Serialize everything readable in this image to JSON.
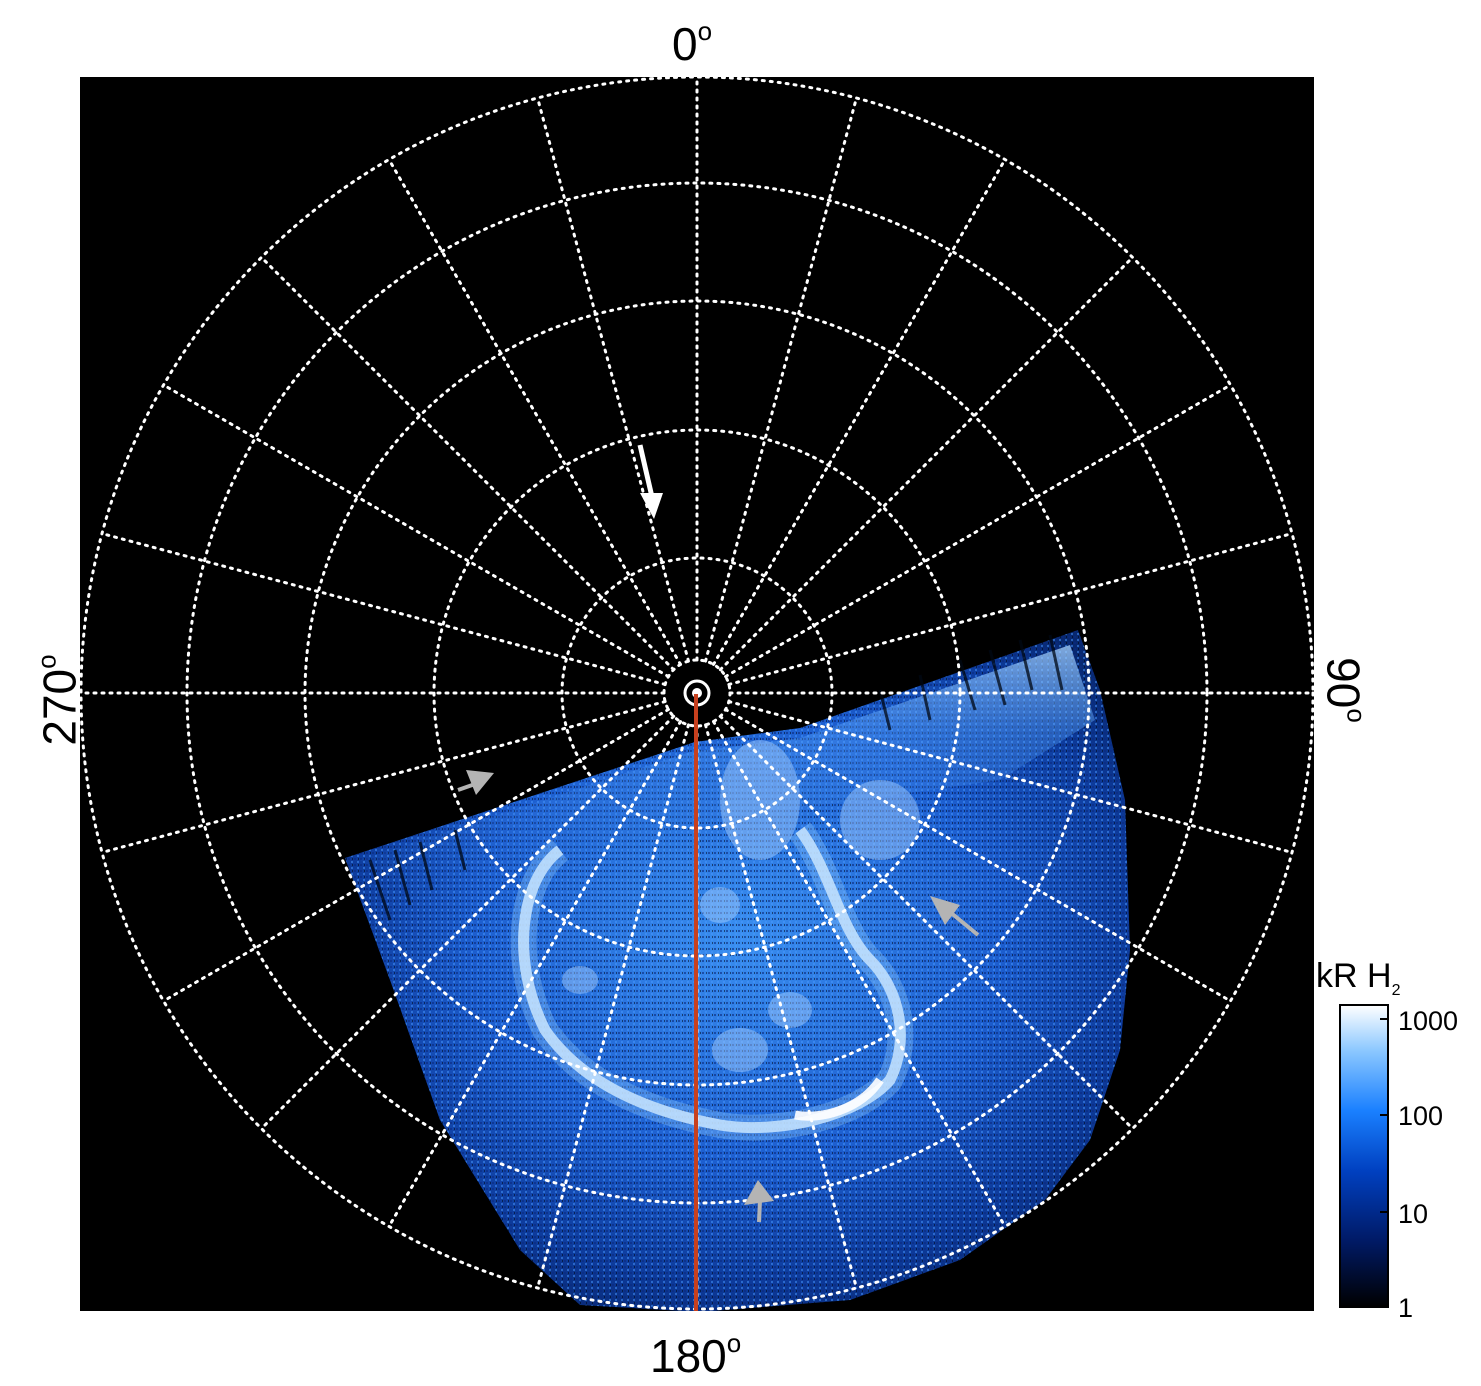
{
  "labels": {
    "top": "0",
    "bottom": "180",
    "left": "270",
    "right": "90",
    "degree_symbol": "o"
  },
  "colorbar": {
    "title": "kR H",
    "title_subscript": "2",
    "ticks": [
      "1000",
      "100",
      "10",
      "1"
    ],
    "scale": "log",
    "range": [
      1,
      1500
    ],
    "colors": [
      "#000000",
      "#001a66",
      "#0040c0",
      "#1a80ff",
      "#8cc8ff",
      "#ffffff"
    ]
  },
  "colors": {
    "frame": "#000000",
    "grid": "#ffffff",
    "meridian": "#c8401e",
    "arrow_primary": "#ffffff",
    "arrow_secondary": "#b4b4b4"
  }
}
